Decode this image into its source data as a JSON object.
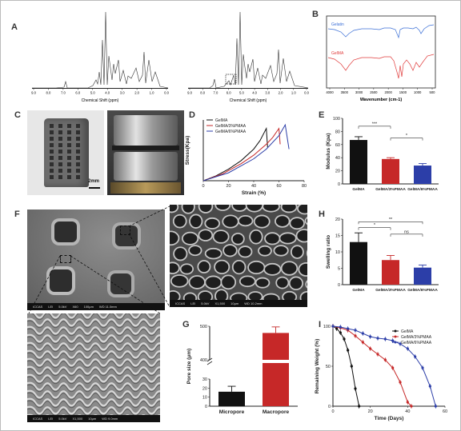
{
  "panel_labels": [
    "A",
    "B",
    "C",
    "D",
    "E",
    "F",
    "G",
    "H",
    "I"
  ],
  "panelA": {
    "xlabel": "Chemical Shift (ppm)",
    "ticks": [
      "9.0",
      "8.0",
      "7.0",
      "6.0",
      "5.0",
      "4.0",
      "3.0",
      "2.0",
      "1.0",
      "0.0"
    ]
  },
  "panelB": {
    "xlabel": "Wavenumber (cm-1)",
    "ticks": [
      "4000",
      "3500",
      "3000",
      "2500",
      "2000",
      "1500",
      "1000",
      "500"
    ],
    "series": [
      {
        "name": "Gelatin",
        "color": "#3b6fd6"
      },
      {
        "name": "GelMA",
        "color": "#e03b3b"
      }
    ]
  },
  "panelC": {
    "scale_bar": "2mm"
  },
  "chart_data": [
    {
      "panel": "D",
      "type": "line",
      "xlabel": "Strain (%)",
      "ylabel": "Stress(Kpa)",
      "x_ticks": [
        "0",
        "20",
        "40",
        "60",
        "80"
      ],
      "xlim": [
        0,
        80
      ],
      "series": [
        {
          "name": "GelMA",
          "color": "#111111",
          "x": [
            0,
            10,
            20,
            30,
            40,
            45,
            50,
            51
          ],
          "y": [
            0,
            0.08,
            0.19,
            0.33,
            0.52,
            0.66,
            0.86,
            0.55
          ]
        },
        {
          "name": "GelMA/3%PMAA",
          "color": "#c62828",
          "x": [
            0,
            15,
            30,
            40,
            50,
            55,
            60,
            61
          ],
          "y": [
            0,
            0.11,
            0.28,
            0.42,
            0.6,
            0.71,
            0.86,
            0.6
          ]
        },
        {
          "name": "GelMA/6%PMAA",
          "color": "#2c3ea8",
          "x": [
            0,
            20,
            40,
            50,
            60,
            65,
            68
          ],
          "y": [
            0,
            0.13,
            0.36,
            0.52,
            0.74,
            0.92,
            0.52
          ]
        }
      ]
    },
    {
      "panel": "E",
      "type": "bar",
      "ylabel": "Modulus (Kpa)",
      "categories": [
        "GelMA",
        "GelMA/3%PMAA",
        "GelMA/6%PMAA"
      ],
      "values": [
        67,
        38,
        28
      ],
      "errors": [
        5,
        2,
        3
      ],
      "colors": [
        "#111111",
        "#c62828",
        "#2c3ea8"
      ],
      "y_ticks": [
        "0",
        "20",
        "40",
        "60",
        "80",
        "100"
      ],
      "ylim": [
        0,
        100
      ],
      "significance": [
        "***",
        "*"
      ]
    },
    {
      "panel": "G",
      "type": "bar",
      "ylabel": "Pore size (μm)",
      "categories": [
        "Micropore",
        "Macropore"
      ],
      "values": [
        16,
        480
      ],
      "errors": [
        6,
        18
      ],
      "colors": [
        "#111111",
        "#c62828"
      ],
      "y_ticks": [
        "0",
        "10",
        "20",
        "30",
        "400",
        "500"
      ],
      "broken_axis": true
    },
    {
      "panel": "H",
      "type": "bar",
      "ylabel": "Swelling ratio",
      "categories": [
        "GelMA",
        "GelMA/3%PMAA",
        "GelMA/6%PMAA"
      ],
      "values": [
        13,
        7.5,
        5.2
      ],
      "errors": [
        2.8,
        1.4,
        0.8
      ],
      "colors": [
        "#111111",
        "#c62828",
        "#2c3ea8"
      ],
      "y_ticks": [
        "0",
        "5",
        "10",
        "15",
        "20"
      ],
      "ylim": [
        0,
        20
      ],
      "significance": [
        "**",
        "*",
        "ns"
      ]
    },
    {
      "panel": "I",
      "type": "line",
      "xlabel": "Time (Days)",
      "ylabel": "Remaining Weight (%)",
      "x_ticks": [
        "0",
        "20",
        "40",
        "60"
      ],
      "y_ticks": [
        "0",
        "50",
        "100"
      ],
      "xlim": [
        0,
        60
      ],
      "ylim": [
        0,
        100
      ],
      "series": [
        {
          "name": "GelMA",
          "color": "#111111",
          "x": [
            0,
            2,
            4,
            6,
            8,
            10,
            12,
            14
          ],
          "y": [
            100,
            97,
            92,
            84,
            70,
            50,
            22,
            0
          ]
        },
        {
          "name": "GelMA/3%PMAA",
          "color": "#c62828",
          "x": [
            0,
            4,
            8,
            12,
            16,
            20,
            24,
            28,
            32,
            36,
            40,
            42
          ],
          "y": [
            100,
            98,
            95,
            88,
            80,
            72,
            65,
            58,
            48,
            30,
            5,
            0
          ]
        },
        {
          "name": "GelMA/6%PMAA",
          "color": "#2c3ea8",
          "x": [
            0,
            4,
            8,
            12,
            16,
            20,
            24,
            28,
            32,
            36,
            40,
            44,
            48,
            52,
            55
          ],
          "y": [
            100,
            99,
            97,
            95,
            91,
            87,
            85,
            84,
            82,
            78,
            72,
            62,
            48,
            25,
            0
          ]
        }
      ]
    }
  ],
  "sem": {
    "F_overview": [
      "ICCAS",
      "LEI",
      "5.0kV",
      "X60",
      "100μm",
      "WD 11.0mm"
    ],
    "F_zoom": [
      "ICCAS",
      "LEI",
      "5.0kV",
      "X1,500",
      "10μm",
      "WD 10.2mm"
    ],
    "F_surface": [
      "ICCAS",
      "LEI",
      "5.0kV",
      "X1,500",
      "10μm",
      "WD 9.0mm"
    ]
  }
}
